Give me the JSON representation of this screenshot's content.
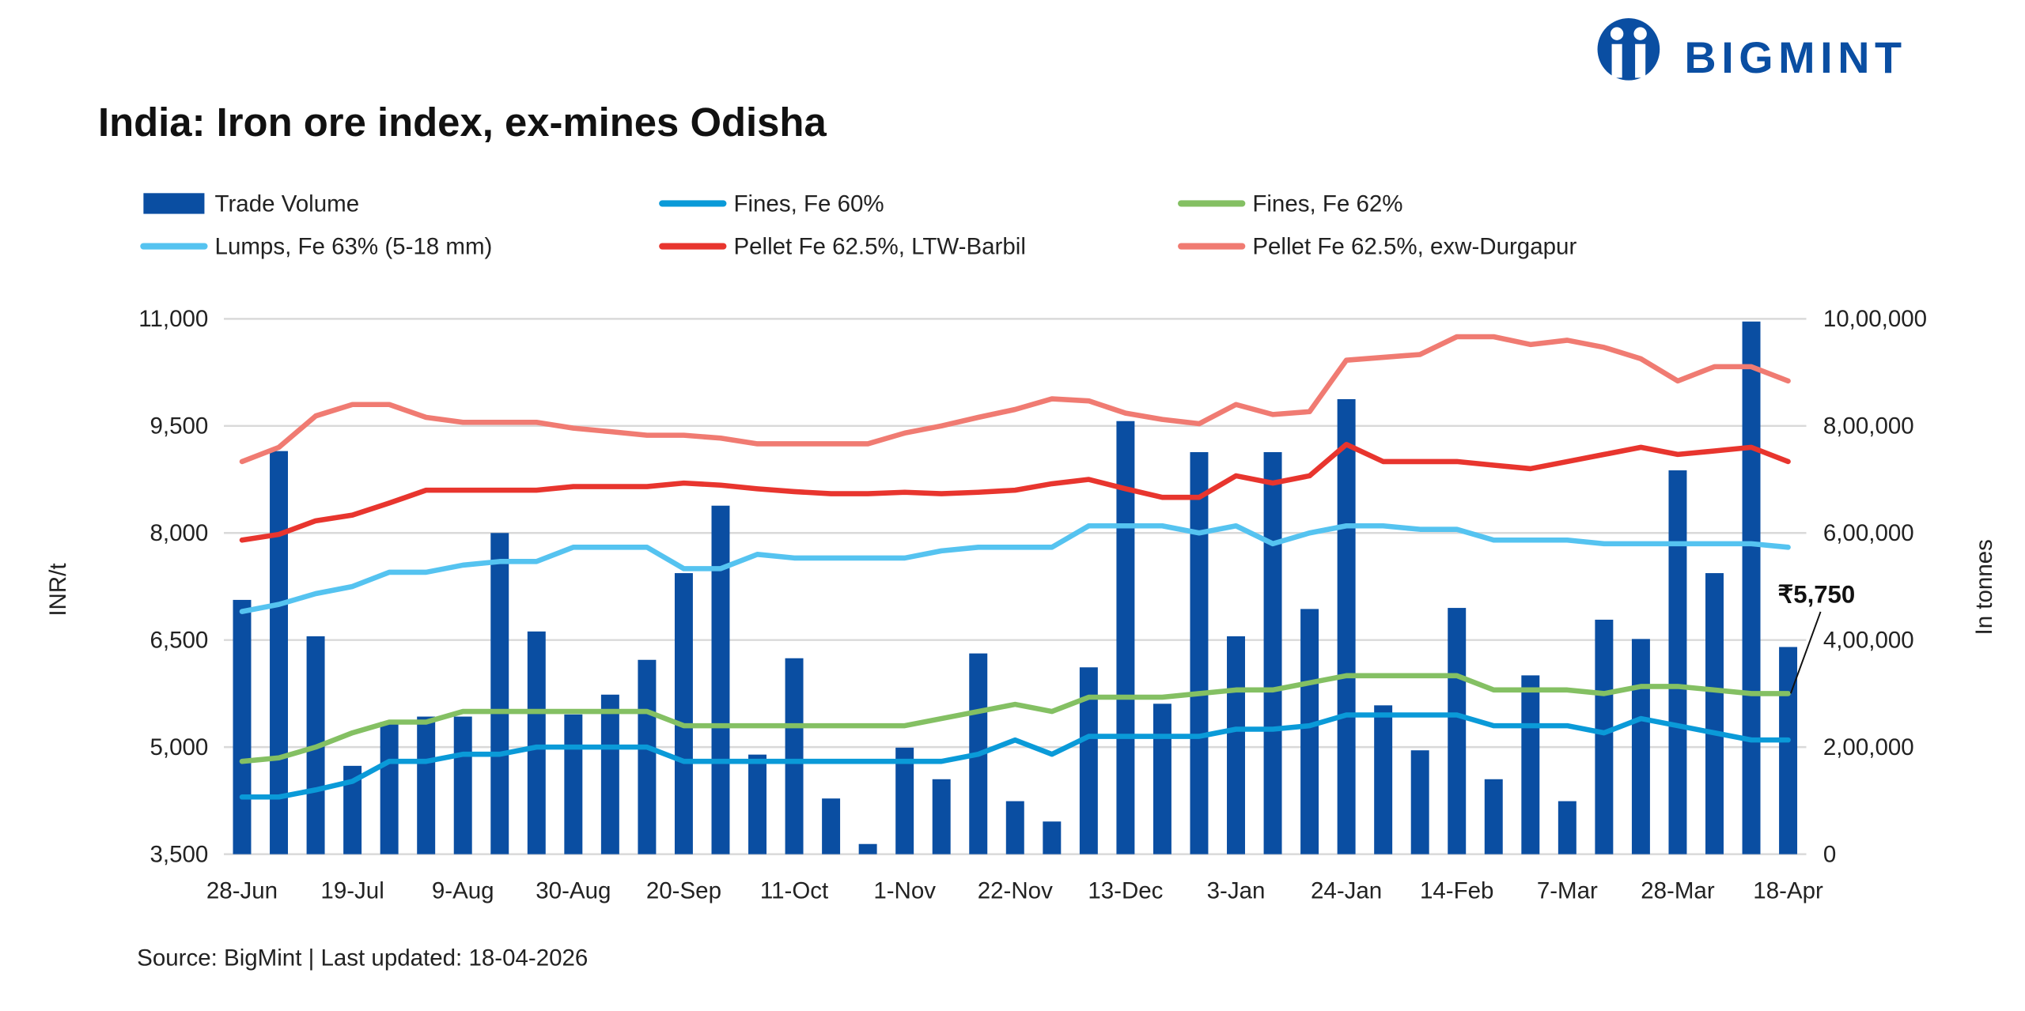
{
  "brand": {
    "name": "BIGMINT",
    "color": "#0a4ea2"
  },
  "chart_data": {
    "type": "bar+line",
    "title": "India: Iron ore index, ex-mines Odisha",
    "source": "Source: BigMint | Last updated: 18-04-2026",
    "ylabel": "INR/t",
    "y2label": "In tonnes",
    "ylim": [
      3500,
      11000
    ],
    "yticks": [
      "3,500",
      "5,000",
      "6,500",
      "8,000",
      "9,500",
      "11,000"
    ],
    "y2lim": [
      0,
      1000000
    ],
    "y2ticks": [
      "0",
      "2,00,000",
      "4,00,000",
      "6,00,000",
      "8,00,000",
      "10,00,000"
    ],
    "grid": true,
    "legend_position": "top",
    "x_tick_labels": [
      "28-Jun",
      "19-Jul",
      "9-Aug",
      "30-Aug",
      "20-Sep",
      "11-Oct",
      "1-Nov",
      "22-Nov",
      "13-Dec",
      "3-Jan",
      "24-Jan",
      "14-Feb",
      "7-Mar",
      "28-Mar",
      "18-Apr"
    ],
    "annotation": {
      "text": "₹5,750",
      "series": "Fines, Fe 62%",
      "point": "18-Apr"
    },
    "bars": {
      "name": "Trade Volume",
      "axis": "right",
      "color": "#0a4ea2",
      "values": [
        475000,
        753000,
        407000,
        165000,
        247000,
        257000,
        257000,
        600000,
        416000,
        261000,
        298000,
        363000,
        525000,
        651000,
        186000,
        366000,
        104000,
        19000,
        199000,
        140000,
        375000,
        99000,
        61000,
        349000,
        809000,
        281000,
        751000,
        407000,
        751000,
        458000,
        850000,
        278000,
        194000,
        460000,
        140000,
        334000,
        99000,
        438000,
        402000,
        717000,
        525000,
        995000,
        387000
      ]
    },
    "series": [
      {
        "name": "Fines, Fe 60%",
        "color": "#0a9ad8",
        "values": [
          4300,
          4300,
          4400,
          4520,
          4800,
          4800,
          4900,
          4900,
          5000,
          5000,
          5000,
          5000,
          4800,
          4800,
          4800,
          4800,
          4800,
          4800,
          4800,
          4800,
          4900,
          5100,
          4900,
          5150,
          5150,
          5150,
          5150,
          5250,
          5250,
          5300,
          5450,
          5450,
          5450,
          5450,
          5300,
          5300,
          5300,
          5200,
          5400,
          5300,
          5200,
          5100,
          5100
        ]
      },
      {
        "name": "Fines, Fe 62%",
        "color": "#84c063",
        "values": [
          4800,
          4850,
          5000,
          5200,
          5350,
          5350,
          5500,
          5500,
          5500,
          5500,
          5500,
          5500,
          5300,
          5300,
          5300,
          5300,
          5300,
          5300,
          5300,
          5400,
          5500,
          5600,
          5500,
          5700,
          5700,
          5700,
          5750,
          5800,
          5800,
          5900,
          6000,
          6000,
          6000,
          6000,
          5800,
          5800,
          5800,
          5750,
          5850,
          5850,
          5800,
          5750,
          5750
        ]
      },
      {
        "name": "Lumps, Fe 63% (5-18 mm)",
        "color": "#55c3f0",
        "values": [
          6900,
          7000,
          7150,
          7250,
          7450,
          7450,
          7550,
          7600,
          7600,
          7800,
          7800,
          7800,
          7500,
          7500,
          7700,
          7650,
          7650,
          7650,
          7650,
          7750,
          7800,
          7800,
          7800,
          8100,
          8100,
          8100,
          8000,
          8100,
          7850,
          8000,
          8100,
          8100,
          8050,
          8050,
          7900,
          7900,
          7900,
          7850,
          7850,
          7850,
          7850,
          7850,
          7800
        ]
      },
      {
        "name": "Pellet Fe 62.5%, LTW-Barbil",
        "color": "#e8352e",
        "values": [
          7900,
          7980,
          8170,
          8250,
          8420,
          8600,
          8600,
          8600,
          8600,
          8650,
          8650,
          8650,
          8700,
          8670,
          8620,
          8580,
          8550,
          8550,
          8570,
          8550,
          8570,
          8600,
          8690,
          8750,
          8620,
          8500,
          8500,
          8800,
          8700,
          8800,
          9240,
          9000,
          9000,
          9000,
          8950,
          8900,
          9000,
          9100,
          9200,
          9100,
          9150,
          9200,
          9000
        ]
      },
      {
        "name": "Pellet Fe  62.5%, exw-Durgapur",
        "color": "#f07b72",
        "values": [
          9000,
          9200,
          9640,
          9800,
          9800,
          9620,
          9550,
          9550,
          9550,
          9470,
          9420,
          9370,
          9370,
          9330,
          9250,
          9250,
          9250,
          9250,
          9400,
          9500,
          9620,
          9730,
          9880,
          9850,
          9680,
          9590,
          9530,
          9800,
          9660,
          9700,
          10420,
          10460,
          10500,
          10750,
          10750,
          10640,
          10700,
          10600,
          10440,
          10130,
          10330,
          10330,
          10130
        ]
      }
    ]
  }
}
